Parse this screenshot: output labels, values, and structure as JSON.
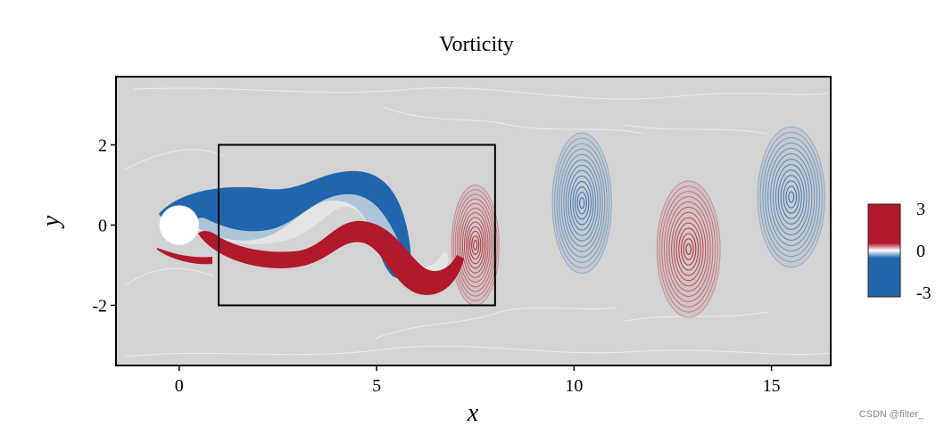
{
  "watermark": "CSDN @filter_",
  "chart_data": {
    "type": "heatmap",
    "title": "Vorticity",
    "xlabel": "x",
    "ylabel": "y",
    "xlim": [
      -1.6,
      16.5
    ],
    "ylim": [
      -3.5,
      3.7
    ],
    "x_ticks": [
      0,
      5,
      10,
      15
    ],
    "x_tick_labels": [
      "0",
      "5",
      "10",
      "15"
    ],
    "y_ticks": [
      2,
      0,
      -2
    ],
    "y_tick_labels": [
      "2",
      "0",
      "-2"
    ],
    "grid": false,
    "background_color": "#d3d3d3",
    "cylinder": {
      "center": [
        0,
        0
      ],
      "radius": 0.5
    },
    "highlight_box": {
      "x": [
        1,
        8
      ],
      "y": [
        -2,
        2
      ]
    },
    "colorbar": {
      "ticks": [
        3,
        0,
        -3
      ],
      "tick_labels": [
        "3",
        "0",
        "-3"
      ],
      "range": [
        -3,
        3
      ],
      "positive_color": "#b2182b",
      "zero_color": "#ffffff",
      "negative_color": "#2166ac",
      "placement": "right"
    },
    "vortices": [
      {
        "sign": "positive",
        "x": 7.5,
        "y": -0.5,
        "rx": 0.6,
        "ry": 1.5
      },
      {
        "sign": "negative",
        "x": 10.2,
        "y": 0.55,
        "rx": 0.75,
        "ry": 1.75
      },
      {
        "sign": "positive",
        "x": 12.9,
        "y": -0.6,
        "rx": 0.8,
        "ry": 1.7
      },
      {
        "sign": "negative",
        "x": 15.5,
        "y": 0.7,
        "rx": 0.85,
        "ry": 1.75
      }
    ]
  }
}
